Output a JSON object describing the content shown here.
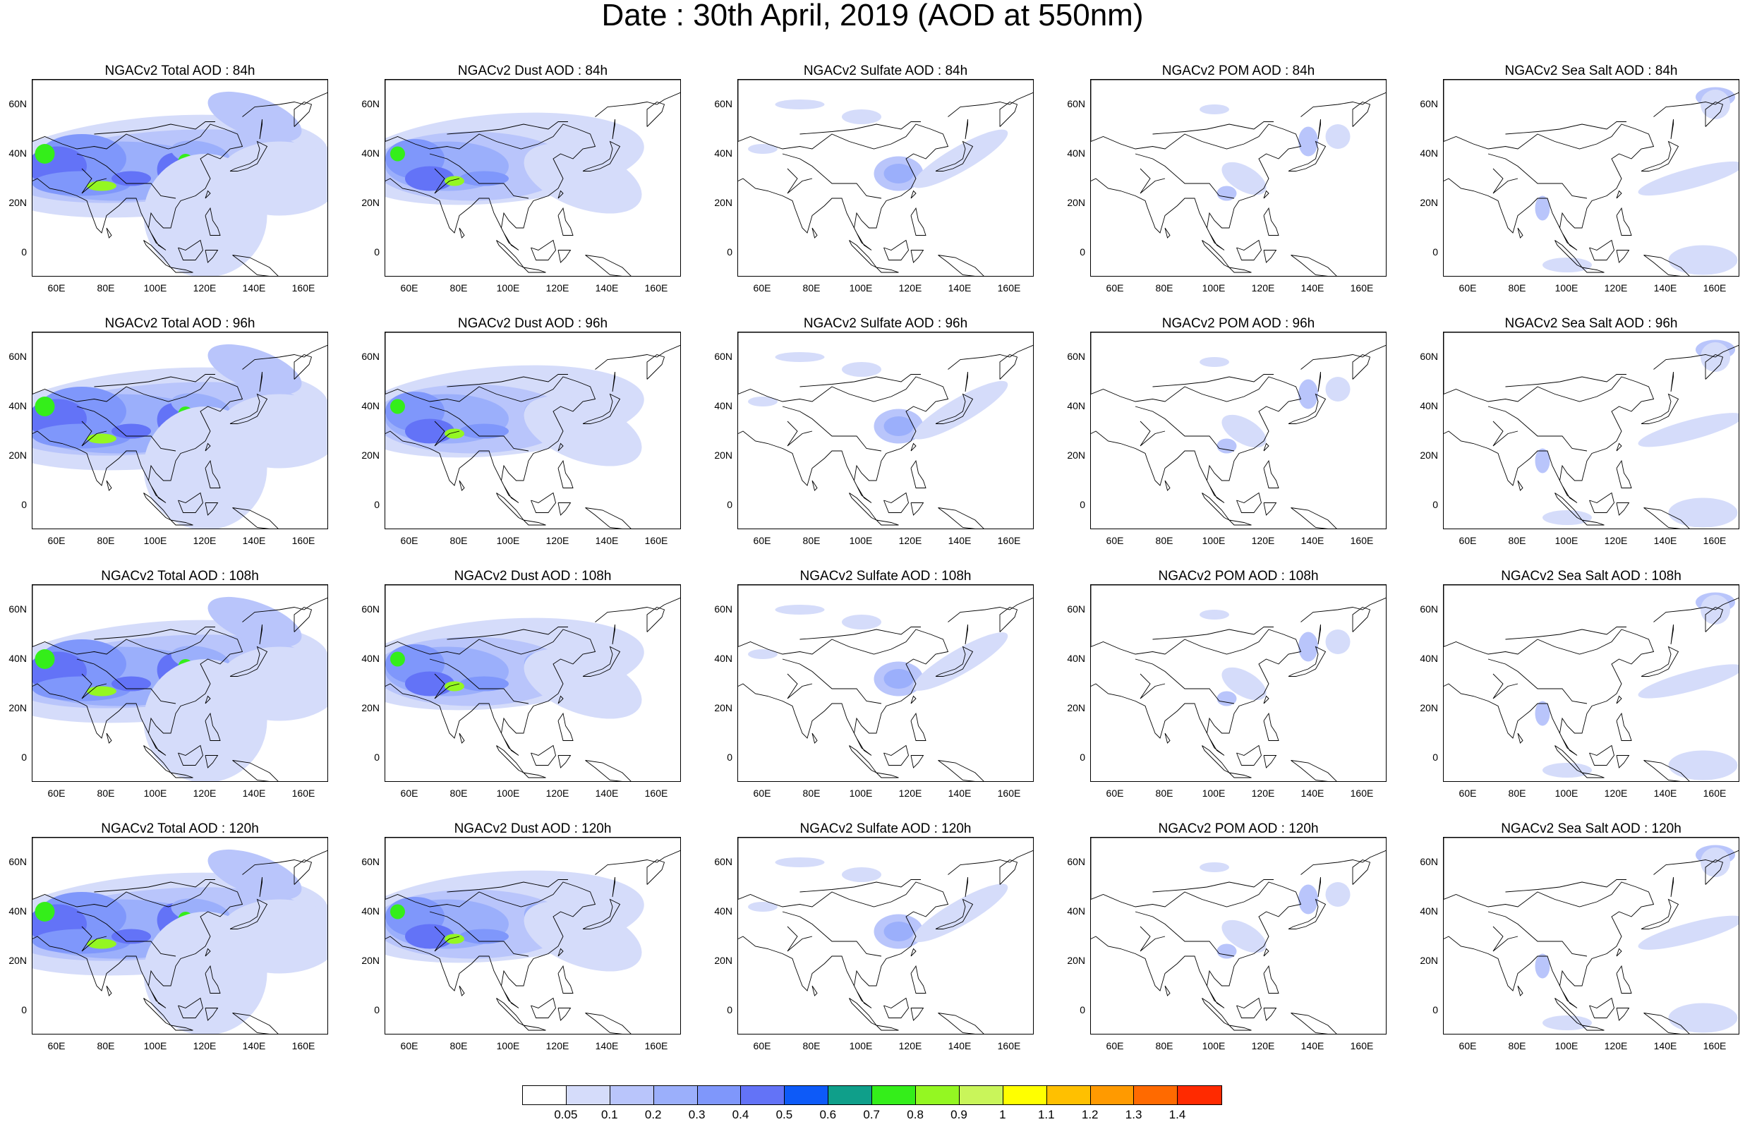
{
  "title": "Date : 30th April, 2019 (AOD at 550nm)",
  "row_titles": [
    [
      "NGACv2 Total AOD : 84h",
      "NGACv2 Dust AOD : 84h",
      "NGACv2 Sulfate AOD : 84h",
      "NGACv2 POM AOD : 84h",
      "NGACv2 Sea Salt AOD : 84h"
    ],
    [
      "NGACv2 Total AOD : 96h",
      "NGACv2 Dust AOD : 96h",
      "NGACv2 Sulfate AOD : 96h",
      "NGACv2 POM AOD : 96h",
      "NGACv2 Sea Salt AOD : 96h"
    ],
    [
      "NGACv2 Total AOD : 108h",
      "NGACv2 Dust AOD : 108h",
      "NGACv2 Sulfate AOD : 108h",
      "NGACv2 POM AOD : 108h",
      "NGACv2 Sea Salt AOD : 108h"
    ],
    [
      "NGACv2 Total AOD : 120h",
      "NGACv2 Dust AOD : 120h",
      "NGACv2 Sulfate AOD : 120h",
      "NGACv2 POM AOD : 120h",
      "NGACv2 Sea Salt  AOD : 120h"
    ]
  ],
  "species": [
    "total",
    "dust",
    "sulfate",
    "pom",
    "seasalt"
  ],
  "lat_ticks": [
    "60N",
    "40N",
    "20N",
    "0"
  ],
  "lat_values": [
    60,
    40,
    20,
    0
  ],
  "lon_ticks": [
    "60E",
    "80E",
    "100E",
    "120E",
    "140E",
    "160E"
  ],
  "lon_values": [
    60,
    80,
    100,
    120,
    140,
    160
  ],
  "map_extent": {
    "lon_min": 50,
    "lon_max": 170,
    "lat_min": -10,
    "lat_max": 70
  },
  "colorbar": {
    "labels": [
      "0.05",
      "0.1",
      "0.2",
      "0.3",
      "0.4",
      "0.5",
      "0.6",
      "0.7",
      "0.8",
      "0.9",
      "1",
      "1.1",
      "1.2",
      "1.3",
      "1.4"
    ],
    "colors": [
      "#ffffff",
      "#d5dcfa",
      "#b9c5fb",
      "#9baffb",
      "#7f97fb",
      "#6373f7",
      "#0d5af8",
      "#0f9f8a",
      "#34ee1a",
      "#94f722",
      "#c9f55a",
      "#ffff00",
      "#ffc000",
      "#ff9a00",
      "#ff6a00",
      "#ff2a00"
    ]
  }
}
